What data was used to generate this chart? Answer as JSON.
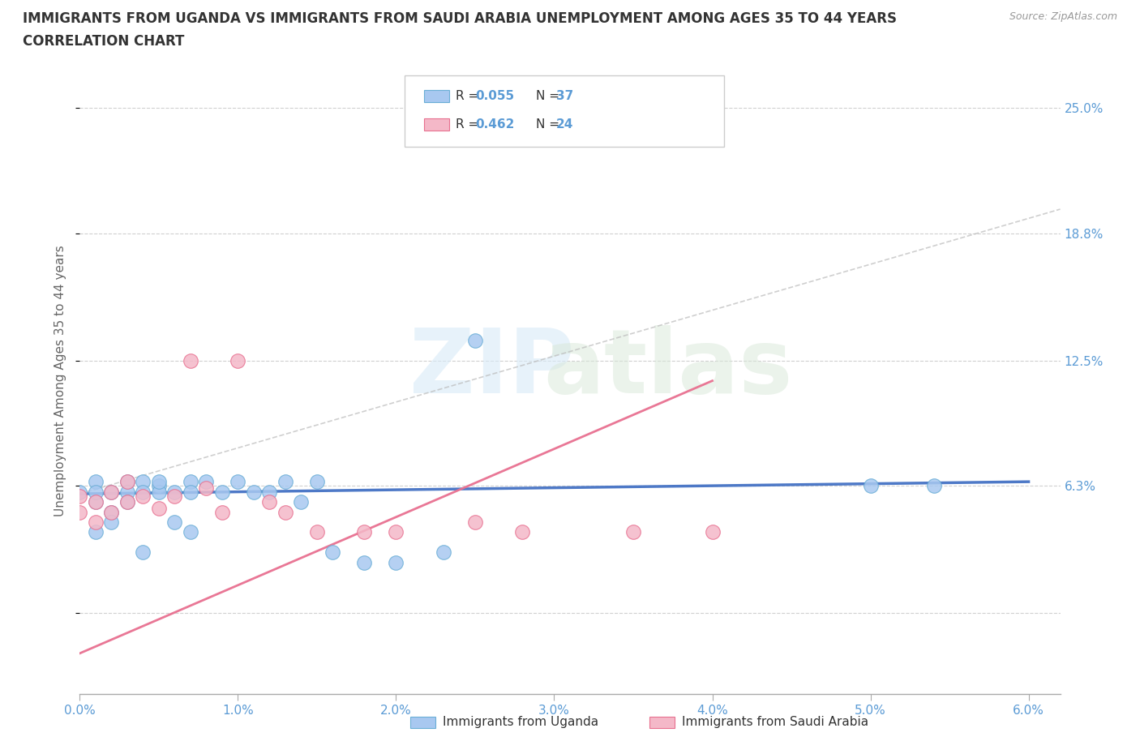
{
  "title_line1": "IMMIGRANTS FROM UGANDA VS IMMIGRANTS FROM SAUDI ARABIA UNEMPLOYMENT AMONG AGES 35 TO 44 YEARS",
  "title_line2": "CORRELATION CHART",
  "source_text": "Source: ZipAtlas.com",
  "ylabel": "Unemployment Among Ages 35 to 44 years",
  "xlim": [
    0.0,
    0.062
  ],
  "ylim": [
    -0.04,
    0.27
  ],
  "xtick_vals": [
    0.0,
    0.01,
    0.02,
    0.03,
    0.04,
    0.05,
    0.06
  ],
  "xtick_labels": [
    "0.0%",
    "1.0%",
    "2.0%",
    "3.0%",
    "4.0%",
    "5.0%",
    "6.0%"
  ],
  "ytick_vals": [
    0.0,
    0.063,
    0.125,
    0.188,
    0.25
  ],
  "ytick_labels": [
    "",
    "6.3%",
    "12.5%",
    "18.8%",
    "25.0%"
  ],
  "color_uganda": "#a8c8f0",
  "color_saudi": "#f4b8c8",
  "color_uganda_edge": "#6aaed6",
  "color_saudi_edge": "#e87090",
  "color_uganda_line": "#4472c4",
  "color_saudi_line": "#e87090",
  "color_text_blue": "#5b9bd5",
  "color_grid": "#d0d0d0",
  "uganda_x": [
    0.0,
    0.001,
    0.001,
    0.001,
    0.001,
    0.002,
    0.002,
    0.002,
    0.003,
    0.003,
    0.003,
    0.004,
    0.004,
    0.004,
    0.005,
    0.005,
    0.005,
    0.006,
    0.006,
    0.007,
    0.007,
    0.007,
    0.008,
    0.009,
    0.01,
    0.011,
    0.012,
    0.013,
    0.014,
    0.015,
    0.016,
    0.018,
    0.02,
    0.023,
    0.025,
    0.05,
    0.054
  ],
  "uganda_y": [
    0.06,
    0.065,
    0.055,
    0.06,
    0.04,
    0.06,
    0.05,
    0.045,
    0.065,
    0.06,
    0.055,
    0.065,
    0.06,
    0.03,
    0.063,
    0.06,
    0.065,
    0.06,
    0.045,
    0.065,
    0.06,
    0.04,
    0.065,
    0.06,
    0.065,
    0.06,
    0.06,
    0.065,
    0.055,
    0.065,
    0.03,
    0.025,
    0.025,
    0.03,
    0.135,
    0.063,
    0.063
  ],
  "saudi_x": [
    0.0,
    0.0,
    0.001,
    0.001,
    0.002,
    0.002,
    0.003,
    0.003,
    0.004,
    0.005,
    0.006,
    0.007,
    0.008,
    0.009,
    0.01,
    0.012,
    0.013,
    0.015,
    0.018,
    0.02,
    0.025,
    0.028,
    0.035,
    0.04
  ],
  "saudi_y": [
    0.058,
    0.05,
    0.055,
    0.045,
    0.06,
    0.05,
    0.065,
    0.055,
    0.058,
    0.052,
    0.058,
    0.125,
    0.062,
    0.05,
    0.125,
    0.055,
    0.05,
    0.04,
    0.04,
    0.04,
    0.045,
    0.04,
    0.04,
    0.04
  ],
  "uganda_trendline_x": [
    0.0,
    0.06
  ],
  "uganda_trendline_y": [
    0.059,
    0.065
  ],
  "saudi_trendline_x": [
    0.0,
    0.04
  ],
  "saudi_trendline_y": [
    -0.02,
    0.115
  ]
}
